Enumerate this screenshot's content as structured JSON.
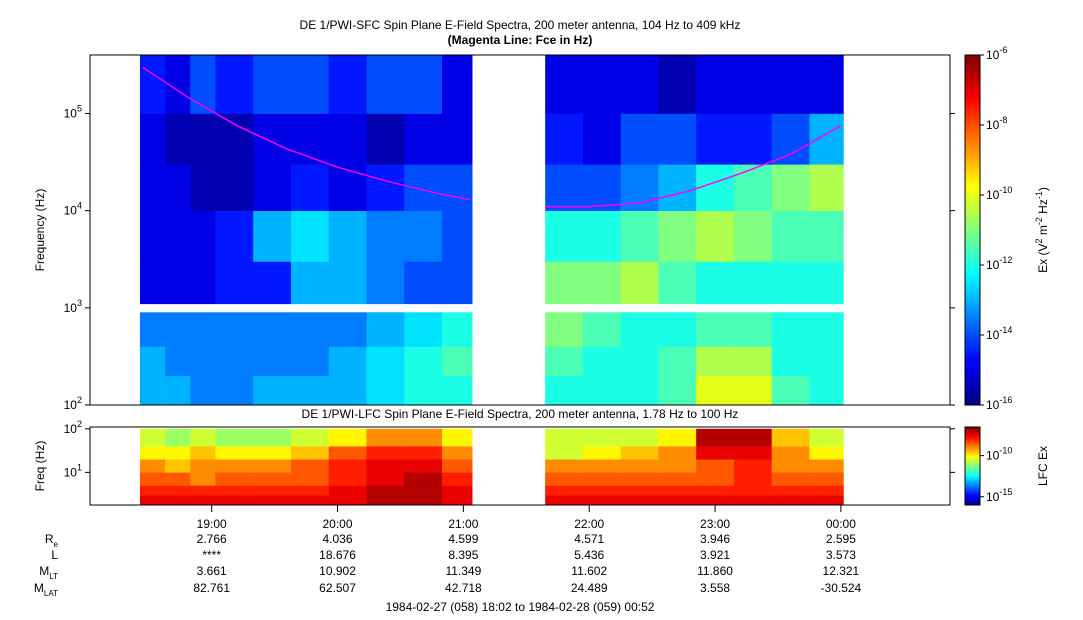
{
  "chart_data": [
    {
      "type": "heatmap",
      "title": "DE 1/PWI-SFC  Spin Plane E-Field Spectra, 200 meter antenna, 104 Hz to 409 kHz",
      "subtitle": "(Magenta Line: Fce in Hz)",
      "ylabel": "Frequency (Hz)",
      "colormap": "jet",
      "log_y": true,
      "xlim": [
        18.033,
        24.867
      ],
      "ylim": [
        100,
        400000
      ],
      "yticks": [
        {
          "value": 100,
          "label": "10",
          "sup": "2"
        },
        {
          "value": 1000,
          "label": "10",
          "sup": "3"
        },
        {
          "value": 10000,
          "label": "10",
          "sup": "4"
        },
        {
          "value": 100000,
          "label": "10",
          "sup": "5"
        }
      ],
      "clim": [
        1e-16,
        1e-06
      ],
      "cticks": [
        {
          "value": 1e-16,
          "label": "10",
          "sup": "-16"
        },
        {
          "value": 1e-14,
          "label": "10",
          "sup": "-14"
        },
        {
          "value": 1e-12,
          "label": "10",
          "sup": "-12"
        },
        {
          "value": 1e-10,
          "label": "10",
          "sup": "-10"
        },
        {
          "value": 1e-08,
          "label": "10",
          "sup": "-8"
        },
        {
          "value": 1e-06,
          "label": "10",
          "sup": "-6"
        }
      ],
      "colorbar_label_parts": [
        "Ex (V",
        "2",
        " m",
        "-2",
        " Hz",
        "-1",
        ")"
      ],
      "x_edges": [
        18.43,
        18.63,
        18.83,
        19.03,
        19.33,
        19.63,
        19.93,
        20.23,
        20.53,
        20.83,
        21.07,
        21.65,
        21.95,
        22.25,
        22.55,
        22.85,
        23.15,
        23.45,
        23.75,
        24.02
      ],
      "y_edges": [
        100,
        200,
        400,
        900,
        1100,
        3000,
        10000,
        30000,
        100000,
        400000
      ],
      "z": [
        [
          1e-13,
          1e-13,
          3e-14,
          3e-14,
          1e-13,
          1e-13,
          1e-13,
          3e-13,
          1e-12,
          1e-12,
          null,
          1e-12,
          1e-12,
          1e-12,
          3e-12,
          1e-10,
          1e-10,
          3e-12,
          1e-12
        ],
        [
          1e-13,
          3e-14,
          3e-14,
          3e-14,
          3e-14,
          3e-14,
          1e-13,
          3e-13,
          1e-12,
          3e-12,
          null,
          3e-12,
          1e-12,
          1e-12,
          3e-12,
          3e-11,
          3e-11,
          1e-12,
          1e-12
        ],
        [
          3e-14,
          3e-14,
          3e-14,
          3e-14,
          3e-14,
          3e-14,
          3e-14,
          1e-13,
          3e-13,
          1e-12,
          null,
          1e-11,
          3e-12,
          1e-12,
          1e-12,
          3e-12,
          3e-12,
          1e-12,
          1e-12
        ],
        [
          null,
          null,
          null,
          null,
          null,
          null,
          null,
          null,
          null,
          null,
          null,
          null,
          null,
          null,
          null,
          null,
          null,
          null,
          null
        ],
        [
          1e-15,
          1e-15,
          1e-15,
          3e-15,
          3e-15,
          1e-13,
          1e-13,
          3e-14,
          1e-14,
          1e-14,
          null,
          1e-11,
          1e-11,
          3e-11,
          3e-12,
          1e-12,
          1e-12,
          1e-12,
          1e-12
        ],
        [
          1e-15,
          1e-15,
          1e-15,
          3e-15,
          1e-13,
          3e-13,
          1e-13,
          3e-14,
          3e-14,
          1e-14,
          null,
          1e-12,
          1e-12,
          3e-12,
          1e-11,
          3e-11,
          1e-11,
          3e-12,
          3e-12
        ],
        [
          1e-15,
          1e-15,
          3e-16,
          3e-16,
          1e-15,
          3e-15,
          1e-15,
          3e-15,
          1e-14,
          1e-14,
          null,
          1e-14,
          1e-14,
          3e-14,
          1e-13,
          1e-12,
          3e-12,
          1e-11,
          3e-11
        ],
        [
          1e-15,
          3e-16,
          3e-16,
          3e-16,
          1e-15,
          1e-15,
          1e-15,
          3e-16,
          1e-15,
          1e-15,
          null,
          3e-15,
          1e-15,
          1e-14,
          1e-14,
          3e-15,
          3e-15,
          1e-14,
          1e-13
        ],
        [
          3e-15,
          1e-15,
          1e-14,
          3e-15,
          1e-14,
          1e-14,
          3e-15,
          1e-14,
          1e-14,
          1e-15,
          null,
          1e-15,
          1e-15,
          1e-15,
          3e-16,
          1e-15,
          1e-15,
          1e-15,
          1e-15
        ]
      ],
      "lines": [
        {
          "color": "#ff00ff",
          "x": [
            18.45,
            18.8,
            19.2,
            19.6,
            20.0,
            20.4,
            20.8,
            21.05,
            21.4,
            21.65,
            22.0,
            22.4,
            22.8,
            23.2,
            23.6,
            24.0
          ],
          "y": [
            300000,
            150000,
            75000,
            43000,
            28000,
            20000,
            15000,
            13000,
            null,
            11000,
            11000,
            12000,
            16000,
            24000,
            38000,
            75000
          ]
        }
      ]
    },
    {
      "type": "heatmap",
      "title": "DE 1/PWI-LFC  Spin Plane E-Field Spectra, 200 meter antenna, 1.78 Hz to 100 Hz",
      "ylabel": "Freq (Hz)",
      "colormap": "jet",
      "log_y": true,
      "xlim": [
        18.033,
        24.867
      ],
      "xticks": [
        {
          "value": 19,
          "label": "19:00"
        },
        {
          "value": 20,
          "label": "20:00"
        },
        {
          "value": 21,
          "label": "21:00"
        },
        {
          "value": 22,
          "label": "22:00"
        },
        {
          "value": 23,
          "label": "23:00"
        },
        {
          "value": 24,
          "label": "00:00"
        }
      ],
      "ylim": [
        1.78,
        110
      ],
      "yticks": [
        {
          "value": 10,
          "label": "10",
          "sup": "1"
        },
        {
          "value": 100,
          "label": "10",
          "sup": "2"
        }
      ],
      "clim": [
        1e-16,
        3e-07
      ],
      "cticks": [
        {
          "value": 1e-15,
          "label": "10",
          "sup": "-15"
        },
        {
          "value": 1e-10,
          "label": "10",
          "sup": "-10"
        }
      ],
      "colorbar_label_parts": [
        "LFC Ex"
      ],
      "x_edges": [
        18.43,
        18.63,
        18.83,
        19.03,
        19.33,
        19.63,
        19.93,
        20.23,
        20.53,
        20.83,
        21.07,
        21.65,
        21.95,
        22.25,
        22.55,
        22.85,
        23.15,
        23.45,
        23.75,
        24.02
      ],
      "y_edges": [
        1.78,
        3,
        5,
        10,
        20,
        40,
        100
      ],
      "z": [
        [
          3e-08,
          3e-08,
          3e-08,
          3e-08,
          3e-08,
          3e-08,
          3e-08,
          1e-07,
          1e-07,
          3e-08,
          null,
          3e-08,
          3e-08,
          3e-08,
          3e-08,
          3e-08,
          3e-08,
          3e-08,
          3e-08
        ],
        [
          1e-08,
          1e-08,
          1e-08,
          1e-08,
          1e-08,
          1e-08,
          3e-08,
          1e-07,
          1e-07,
          3e-08,
          null,
          1e-08,
          1e-08,
          1e-08,
          1e-08,
          1e-08,
          1e-08,
          1e-08,
          1e-08
        ],
        [
          3e-09,
          3e-09,
          1e-09,
          3e-09,
          3e-09,
          3e-09,
          1e-08,
          3e-08,
          1e-07,
          1e-08,
          null,
          3e-09,
          3e-09,
          3e-09,
          3e-09,
          3e-09,
          1e-08,
          3e-09,
          3e-09
        ],
        [
          1e-09,
          3e-10,
          1e-09,
          1e-09,
          1e-09,
          3e-09,
          1e-08,
          3e-08,
          3e-08,
          3e-09,
          null,
          1e-09,
          1e-09,
          1e-09,
          1e-09,
          3e-09,
          1e-08,
          1e-09,
          1e-09
        ],
        [
          1e-10,
          1e-10,
          3e-10,
          1e-10,
          1e-10,
          3e-10,
          3e-09,
          1e-08,
          1e-08,
          1e-09,
          null,
          3e-11,
          1e-10,
          3e-10,
          1e-09,
          3e-08,
          3e-08,
          1e-09,
          1e-10
        ],
        [
          3e-11,
          1e-11,
          3e-11,
          1e-11,
          1e-11,
          3e-11,
          1e-10,
          1e-09,
          1e-09,
          1e-10,
          null,
          3e-11,
          3e-11,
          3e-11,
          1e-10,
          1e-07,
          1e-07,
          3e-10,
          3e-11
        ]
      ]
    }
  ],
  "ephemeris": {
    "rows": [
      {
        "label": "R",
        "sub": "e",
        "values": [
          "2.766",
          "4.036",
          "4.599",
          "4.571",
          "3.946",
          "2.595"
        ]
      },
      {
        "label": "L",
        "values": [
          "****",
          "18.676",
          "8.395",
          "5.436",
          "3.921",
          "3.573"
        ]
      },
      {
        "label": "M",
        "sub": "LT",
        "values": [
          "3.661",
          "10.902",
          "11.349",
          "11.602",
          "11.860",
          "12.321"
        ]
      },
      {
        "label": "M",
        "sub": "LAT",
        "values": [
          "82.761",
          "62.507",
          "42.718",
          "24.489",
          "3.558",
          "-30.524"
        ]
      }
    ]
  },
  "footer": "1984-02-27 (058) 18:02 to 1984-02-28 (059) 00:52"
}
